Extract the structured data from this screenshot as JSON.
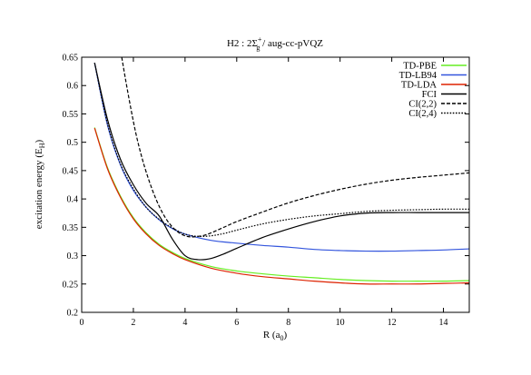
{
  "chart_data": {
    "type": "line",
    "title": {
      "prefix": "H2 : 2",
      "sigma": "Σ",
      "sub": "g",
      "sup": "+",
      "suffix": " / aug-cc-pVQZ"
    },
    "xlabel": {
      "main": "R (a",
      "sub": "0",
      "close": ")"
    },
    "ylabel": {
      "main": "excitation energy (E",
      "sub": "H",
      "close": ")"
    },
    "xlim": [
      0,
      15
    ],
    "ylim": [
      0.2,
      0.65
    ],
    "xticks": [
      0,
      2,
      4,
      6,
      8,
      10,
      12,
      14
    ],
    "yticks": [
      0.2,
      0.25,
      0.3,
      0.35,
      0.4,
      0.45,
      0.5,
      0.55,
      0.6,
      0.65
    ],
    "legend_position": "top-right",
    "series": [
      {
        "name": "TD-PBE",
        "color": "#66ee22",
        "dash": "solid",
        "x": [
          0.5,
          1,
          1.5,
          2,
          2.5,
          3,
          3.5,
          4,
          5,
          6,
          7,
          8,
          9,
          10,
          11,
          12,
          13,
          14,
          15
        ],
        "y": [
          0.526,
          0.455,
          0.405,
          0.367,
          0.34,
          0.32,
          0.306,
          0.295,
          0.281,
          0.273,
          0.268,
          0.264,
          0.261,
          0.258,
          0.256,
          0.255,
          0.255,
          0.255,
          0.256
        ]
      },
      {
        "name": "TD-LB94",
        "color": "#3355dd",
        "dash": "solid",
        "x": [
          0.5,
          1,
          1.5,
          2,
          2.5,
          3,
          3.5,
          4,
          5,
          6,
          7,
          8,
          9,
          10,
          11,
          12,
          13,
          14,
          15
        ],
        "y": [
          0.64,
          0.53,
          0.46,
          0.415,
          0.385,
          0.363,
          0.348,
          0.338,
          0.327,
          0.322,
          0.318,
          0.315,
          0.311,
          0.309,
          0.308,
          0.308,
          0.309,
          0.31,
          0.312
        ]
      },
      {
        "name": "TD-LDA",
        "color": "#dd2200",
        "dash": "solid",
        "x": [
          0.5,
          1,
          1.5,
          2,
          2.5,
          3,
          3.5,
          4,
          5,
          6,
          7,
          8,
          9,
          10,
          11,
          12,
          13,
          14,
          15
        ],
        "y": [
          0.525,
          0.453,
          0.403,
          0.365,
          0.338,
          0.318,
          0.304,
          0.293,
          0.278,
          0.269,
          0.263,
          0.259,
          0.255,
          0.252,
          0.25,
          0.25,
          0.25,
          0.251,
          0.252
        ]
      },
      {
        "name": "FCI",
        "color": "#000000",
        "dash": "solid",
        "x": [
          0.5,
          1,
          1.5,
          2,
          2.5,
          3,
          3.5,
          4,
          4.5,
          5,
          5.5,
          6,
          7,
          8,
          9,
          10,
          11,
          12,
          13,
          14,
          15
        ],
        "y": [
          0.64,
          0.54,
          0.47,
          0.425,
          0.392,
          0.37,
          0.33,
          0.3,
          0.293,
          0.295,
          0.303,
          0.313,
          0.332,
          0.347,
          0.36,
          0.37,
          0.375,
          0.376,
          0.376,
          0.376,
          0.376
        ]
      },
      {
        "name": "CI(2,2)",
        "color": "#000000",
        "dash": "dash",
        "x": [
          1.55,
          1.7,
          1.9,
          2.1,
          2.3,
          2.5,
          2.75,
          3,
          3.25,
          3.5,
          3.75,
          4,
          4.25,
          4.5,
          4.75,
          5,
          5.5,
          6,
          7,
          8,
          9,
          10,
          11,
          12,
          13,
          14,
          15
        ],
        "y": [
          0.65,
          0.61,
          0.56,
          0.515,
          0.478,
          0.447,
          0.414,
          0.387,
          0.366,
          0.351,
          0.341,
          0.335,
          0.333,
          0.334,
          0.336,
          0.34,
          0.35,
          0.36,
          0.377,
          0.393,
          0.406,
          0.417,
          0.426,
          0.433,
          0.438,
          0.442,
          0.446
        ]
      },
      {
        "name": "CI(2,4)",
        "color": "#000000",
        "dash": "dot",
        "x": [
          0.5,
          1,
          1.5,
          2,
          2.5,
          3,
          3.5,
          4,
          4.5,
          5,
          5.5,
          6,
          7,
          8,
          9,
          10,
          11,
          12,
          13,
          14,
          15
        ],
        "y": [
          0.64,
          0.532,
          0.462,
          0.418,
          0.385,
          0.364,
          0.349,
          0.338,
          0.334,
          0.335,
          0.339,
          0.345,
          0.356,
          0.364,
          0.37,
          0.374,
          0.378,
          0.38,
          0.381,
          0.382,
          0.382
        ]
      }
    ]
  }
}
